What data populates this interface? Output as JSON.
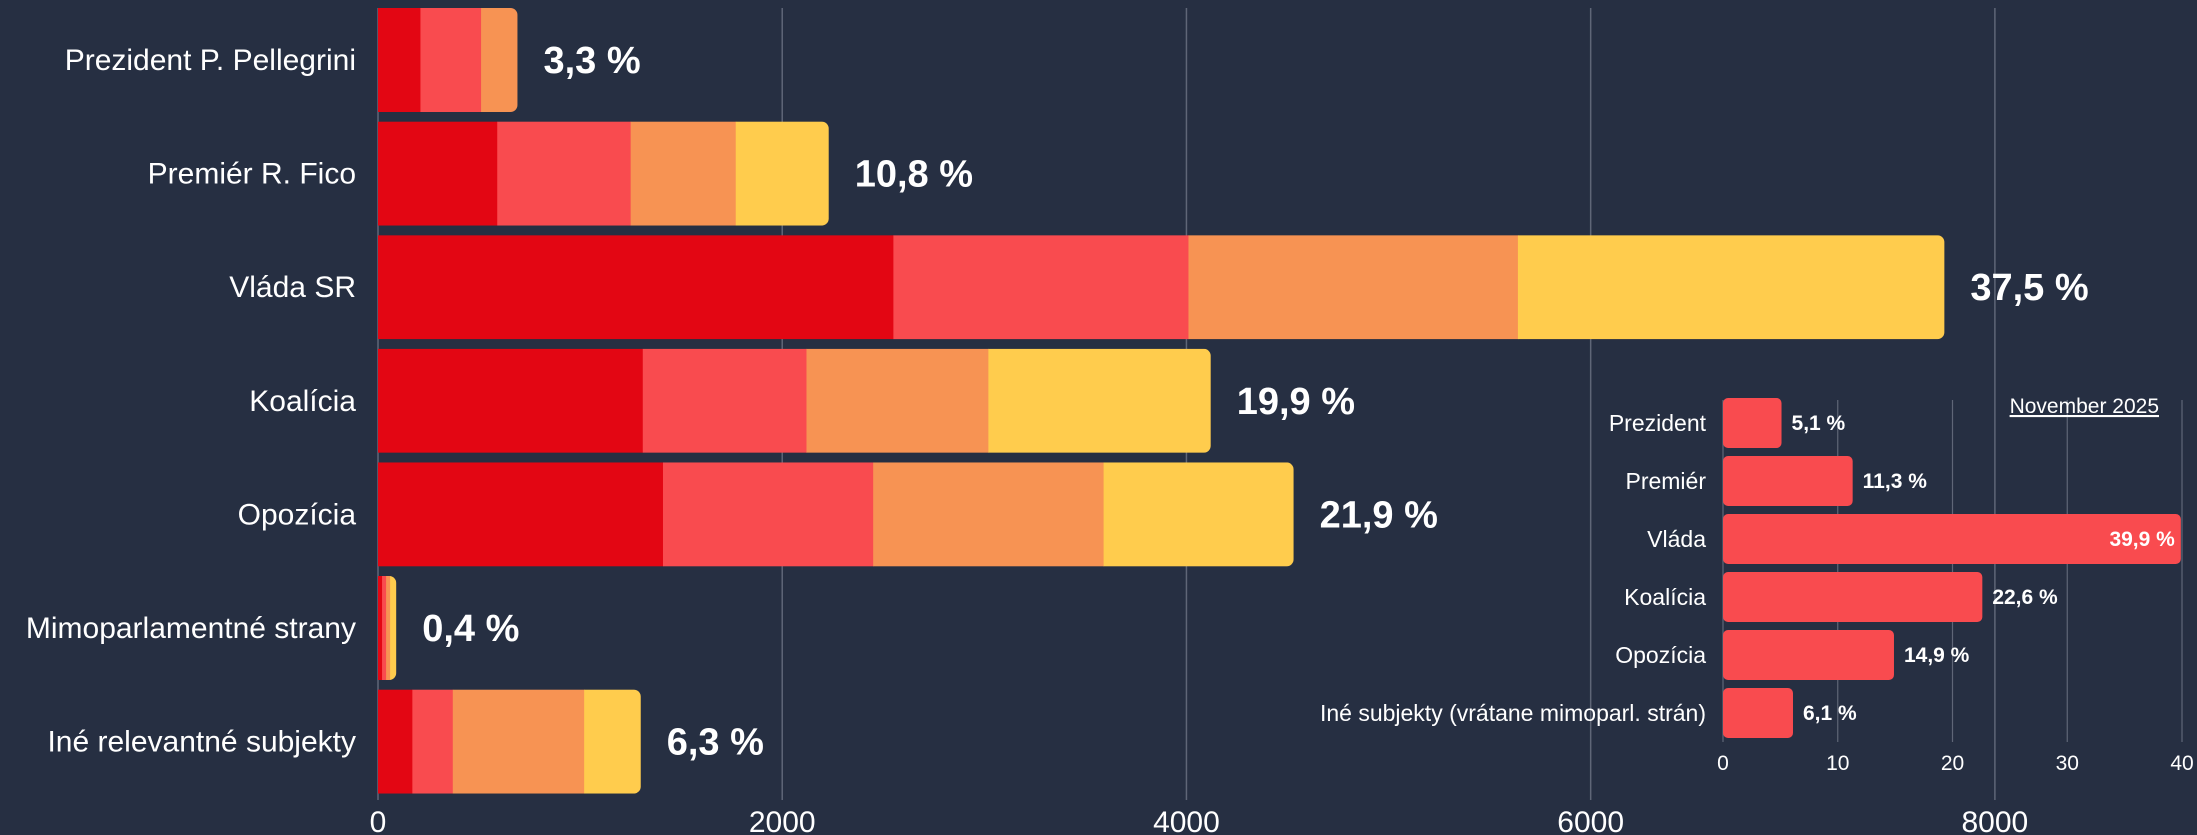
{
  "colors": {
    "background": "#262f42",
    "grid": "#5f6677",
    "text": "#ffffff",
    "segments": [
      "#e30613",
      "#f94b4f",
      "#f79353",
      "#ffcc4d"
    ],
    "inset_bar": "#f94b4f"
  },
  "chart_data": [
    {
      "type": "bar",
      "orientation": "horizontal",
      "stacked": true,
      "categories": [
        "Prezident P. Pellegrini",
        "Premiér R. Fico",
        "Vláda SR",
        "Koalícia",
        "Opozícia",
        "Mimoparlamentné strany",
        "Iné relevantné subjekty"
      ],
      "series": [
        {
          "values": [
            210,
            590,
            2550,
            1310,
            1410,
            20,
            170
          ]
        },
        {
          "values": [
            300,
            660,
            1460,
            810,
            1040,
            20,
            200
          ]
        },
        {
          "values": [
            180,
            520,
            1630,
            900,
            1140,
            20,
            650
          ]
        },
        {
          "values": [
            0,
            460,
            2110,
            1100,
            940,
            30,
            280
          ]
        }
      ],
      "data_labels": [
        "3,3 %",
        "10,8 %",
        "37,5 %",
        "19,9 %",
        "21,9 %",
        "0,4 %",
        "6,3 %"
      ],
      "xlim": [
        0,
        9000
      ],
      "xticks": [
        "0",
        "2000",
        "4000",
        "6000",
        "8000"
      ],
      "xtick_values": [
        0,
        2000,
        4000,
        6000,
        8000
      ],
      "grid": true
    },
    {
      "type": "bar",
      "orientation": "horizontal",
      "title": "November 2025",
      "categories": [
        "Prezident",
        "Premiér",
        "Vláda",
        "Koalícia",
        "Opozícia",
        "Iné subjekty (vrátane mimoparl. strán)"
      ],
      "values": [
        5.1,
        11.3,
        39.9,
        22.6,
        14.9,
        6.1
      ],
      "data_labels": [
        "5,1 %",
        "11,3 %",
        "39,9 %",
        "22,6 %",
        "14,9 %",
        "6,1 %"
      ],
      "xlim": [
        0,
        40
      ],
      "xticks": [
        "0",
        "10",
        "20",
        "30",
        "40"
      ],
      "xtick_values": [
        0,
        10,
        20,
        30,
        40
      ],
      "grid": true
    }
  ]
}
